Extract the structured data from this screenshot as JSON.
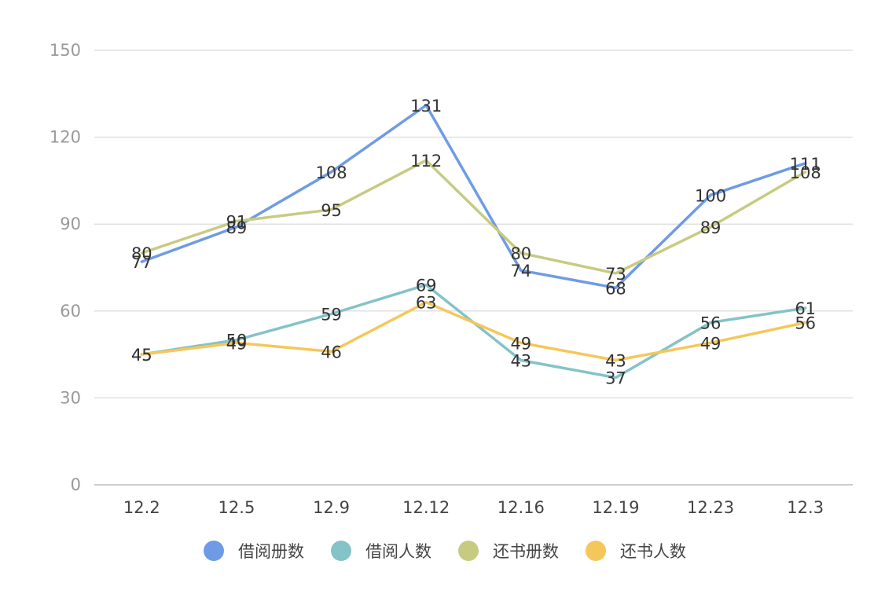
{
  "chart_data": {
    "type": "line",
    "categories": [
      "12.2",
      "12.5",
      "12.9",
      "12.12",
      "12.16",
      "12.19",
      "12.23",
      "12.3"
    ],
    "ylim": [
      0,
      150
    ],
    "yticks": [
      0,
      30,
      60,
      90,
      120,
      150
    ],
    "grid": true,
    "legend_position": "bottom",
    "title": "",
    "xlabel": "",
    "ylabel": "",
    "series": [
      {
        "name": "借阅册数",
        "color": "#6f9be6",
        "values": [
          77,
          89,
          108,
          131,
          74,
          68,
          100,
          111
        ]
      },
      {
        "name": "借阅人数",
        "color": "#84c3c7",
        "values": [
          45,
          50,
          59,
          69,
          43,
          37,
          56,
          61
        ]
      },
      {
        "name": "还书册数",
        "color": "#c7cb82",
        "values": [
          80,
          91,
          95,
          112,
          80,
          73,
          89,
          108
        ]
      },
      {
        "name": "还书人数",
        "color": "#f5c75a",
        "values": [
          45,
          49,
          46,
          63,
          49,
          43,
          49,
          56
        ]
      }
    ]
  }
}
